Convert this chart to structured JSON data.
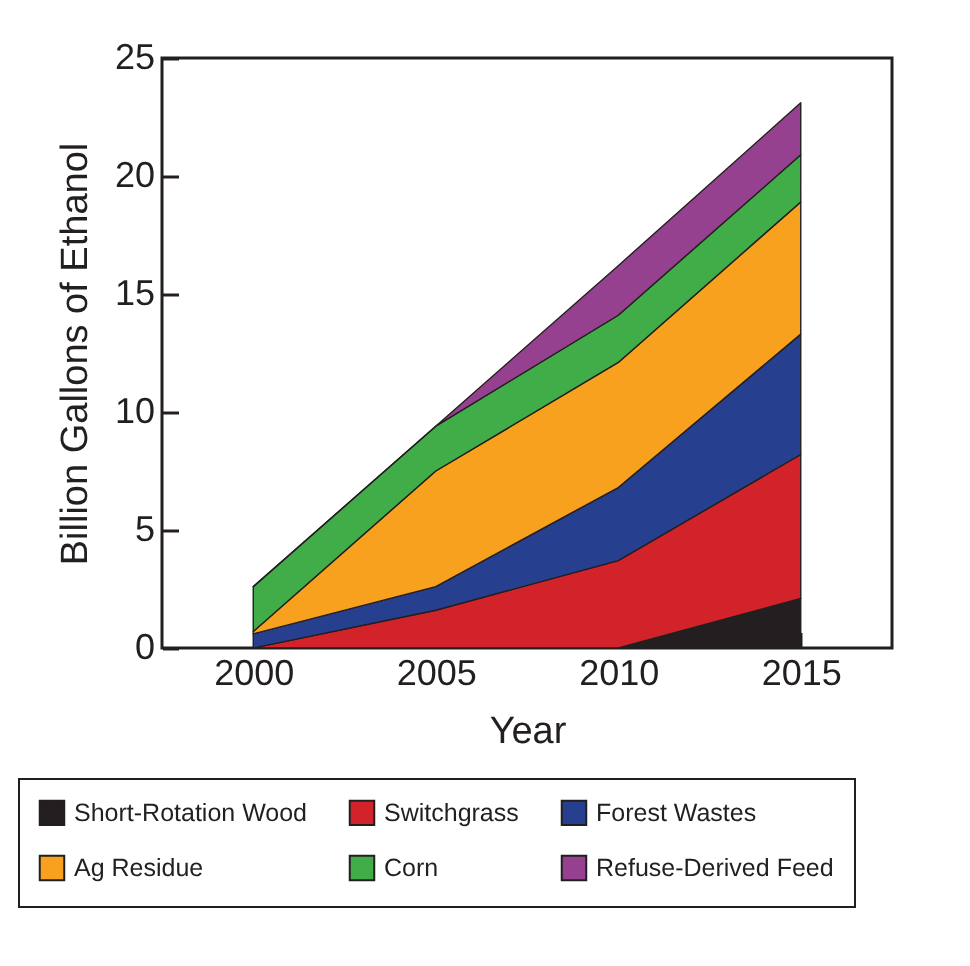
{
  "chart_data": {
    "type": "area",
    "stacked": true,
    "xlabel": "Year",
    "ylabel": "Billion Gallons of Ethanol",
    "x": [
      2000,
      2005,
      2010,
      2015
    ],
    "xlim": [
      1997.5,
      2017.5
    ],
    "xticks": [
      2000,
      2005,
      2010,
      2015
    ],
    "ylim": [
      0,
      25
    ],
    "yticks": [
      0,
      5,
      10,
      15,
      20,
      25
    ],
    "grid": false,
    "legend": "bottom",
    "series": [
      {
        "name": "Short-Rotation Wood",
        "color": "#231f20",
        "values": [
          0,
          0,
          0,
          2.1
        ]
      },
      {
        "name": "Switchgrass",
        "color": "#d2232a",
        "values": [
          0,
          1.6,
          3.7,
          6.1
        ]
      },
      {
        "name": "Forest Wastes",
        "color": "#263f8e",
        "values": [
          0.6,
          1,
          3.1,
          5.1
        ]
      },
      {
        "name": "Ag Residue",
        "color": "#f7a11e",
        "values": [
          0.1,
          4.9,
          5.3,
          5.6
        ]
      },
      {
        "name": "Corn",
        "color": "#41ad49",
        "values": [
          1.9,
          1.9,
          2,
          2
        ]
      },
      {
        "name": "Refuse-Derived Feed",
        "color": "#96418f",
        "values": [
          0,
          0,
          2.1,
          2.2
        ]
      }
    ]
  }
}
